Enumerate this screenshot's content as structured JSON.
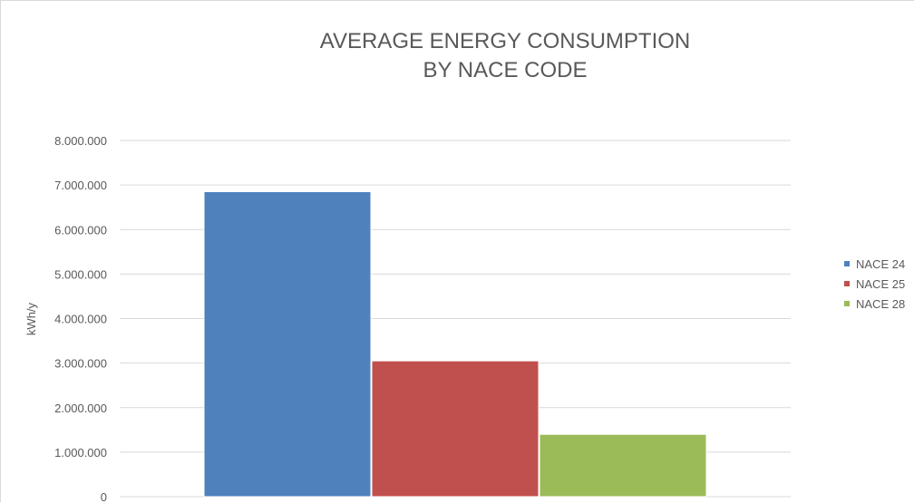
{
  "chart_data": {
    "type": "bar",
    "title_lines": [
      "AVERAGE ENERGY CONSUMPTION",
      "BY NACE CODE"
    ],
    "xlabel": "",
    "ylabel": "kWh/y",
    "ylim": [
      0,
      8000000
    ],
    "yticks": [
      0,
      1000000,
      2000000,
      3000000,
      4000000,
      5000000,
      6000000,
      7000000,
      8000000
    ],
    "ytick_labels": [
      "0",
      "1.000.000",
      "2.000.000",
      "3.000.000",
      "4.000.000",
      "5.000.000",
      "6.000.000",
      "7.000.000",
      "8.000.000"
    ],
    "categories": [
      ""
    ],
    "series": [
      {
        "name": "NACE 24",
        "values": [
          6850000
        ],
        "color": "#4f81bd"
      },
      {
        "name": "NACE 25",
        "values": [
          3050000
        ],
        "color": "#c0504d"
      },
      {
        "name": "NACE 28",
        "values": [
          1400000
        ],
        "color": "#9bbb59"
      }
    ],
    "grid": true,
    "legend_position": "right"
  }
}
